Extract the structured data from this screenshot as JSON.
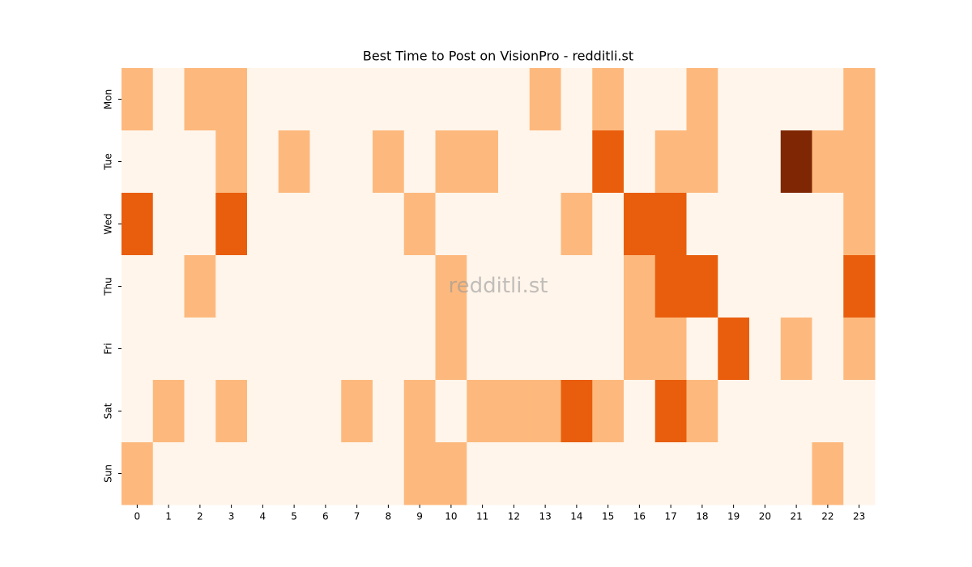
{
  "chart_data": {
    "type": "heatmap",
    "title": "Best Time to Post on VisionPro - redditli.st",
    "watermark": "redditli.st",
    "x": [
      "0",
      "1",
      "2",
      "3",
      "4",
      "5",
      "6",
      "7",
      "8",
      "9",
      "10",
      "11",
      "12",
      "13",
      "14",
      "15",
      "16",
      "17",
      "18",
      "19",
      "20",
      "21",
      "22",
      "23"
    ],
    "categories": [
      "Mon",
      "Tue",
      "Wed",
      "Thu",
      "Fri",
      "Sat",
      "Sun"
    ],
    "values": [
      [
        1,
        0,
        1,
        1,
        0,
        0,
        0,
        0,
        0,
        0,
        0,
        0,
        0,
        1,
        0,
        1,
        0,
        0,
        1,
        0,
        0,
        0,
        0,
        1
      ],
      [
        0,
        0,
        0,
        1,
        0,
        1,
        0,
        0,
        1,
        0,
        1,
        1,
        0,
        0,
        0,
        2,
        0,
        1,
        1,
        0,
        0,
        3,
        1,
        1
      ],
      [
        2,
        0,
        0,
        2,
        0,
        0,
        0,
        0,
        0,
        1,
        0,
        0,
        0,
        0,
        1,
        0,
        2,
        2,
        0,
        0,
        0,
        0,
        0,
        1
      ],
      [
        0,
        0,
        1,
        0,
        0,
        0,
        0,
        0,
        0,
        0,
        1,
        0,
        0,
        0,
        0,
        0,
        1,
        2,
        2,
        0,
        0,
        0,
        0,
        2
      ],
      [
        0,
        0,
        0,
        0,
        0,
        0,
        0,
        0,
        0,
        0,
        1,
        0,
        0,
        0,
        0,
        0,
        1,
        1,
        0,
        2,
        0,
        1,
        0,
        1
      ],
      [
        0,
        1,
        0,
        1,
        0,
        0,
        0,
        1,
        0,
        1,
        0,
        1,
        1,
        1,
        2,
        1,
        0,
        2,
        1,
        0,
        0,
        0,
        0,
        0
      ],
      [
        1,
        0,
        0,
        0,
        0,
        0,
        0,
        0,
        0,
        1,
        1,
        0,
        0,
        0,
        0,
        0,
        0,
        0,
        0,
        0,
        0,
        0,
        1,
        0
      ]
    ],
    "colors": [
      "#fff5eb",
      "#fdb97d",
      "#e95e0d",
      "#7f2704"
    ]
  }
}
